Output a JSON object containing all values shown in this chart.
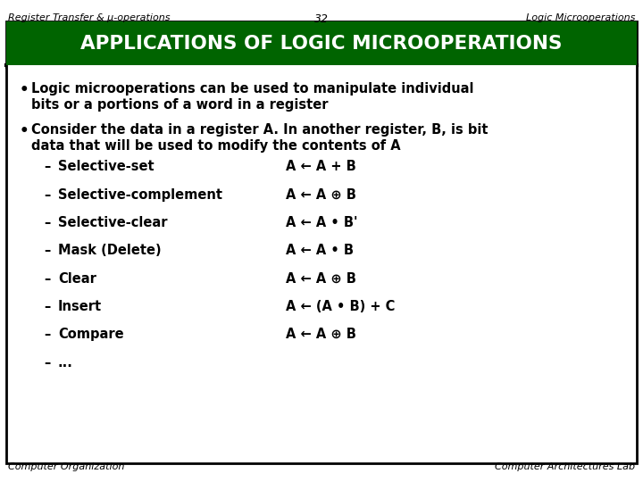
{
  "header_left": "Register Transfer & μ-operations",
  "header_center": "32",
  "header_right": "Logic Microoperations",
  "title": "APPLICATIONS OF LOGIC MICROOPERATIONS",
  "title_bg": "#006400",
  "title_color": "#ffffff",
  "body_bg": "#ffffff",
  "bullet1_line1": "Logic microoperations can be used to manipulate individual",
  "bullet1_line2": "bits or a portions of a word in a register",
  "bullet2_line1": "Consider the data in a register A. In another register, B, is bit",
  "bullet2_line2": "data that will be used to modify the contents of A",
  "operations": [
    [
      "Selective-set",
      "A ← A + B"
    ],
    [
      "Selective-complement",
      "A ← A ⊕ B"
    ],
    [
      "Selective-clear",
      "A ← A • B'"
    ],
    [
      "Mask (Delete)",
      "A ← A • B"
    ],
    [
      "Clear",
      "A ← A ⊕ B"
    ],
    [
      "Insert",
      "A ← (A • B) + C"
    ],
    [
      "Compare",
      "A ← A ⊕ B"
    ]
  ],
  "ellipsis": "...",
  "footer_left": "Computer Organization",
  "footer_right": "Computer Architectures Lab",
  "outer_border": "#000000",
  "text_color": "#000000"
}
